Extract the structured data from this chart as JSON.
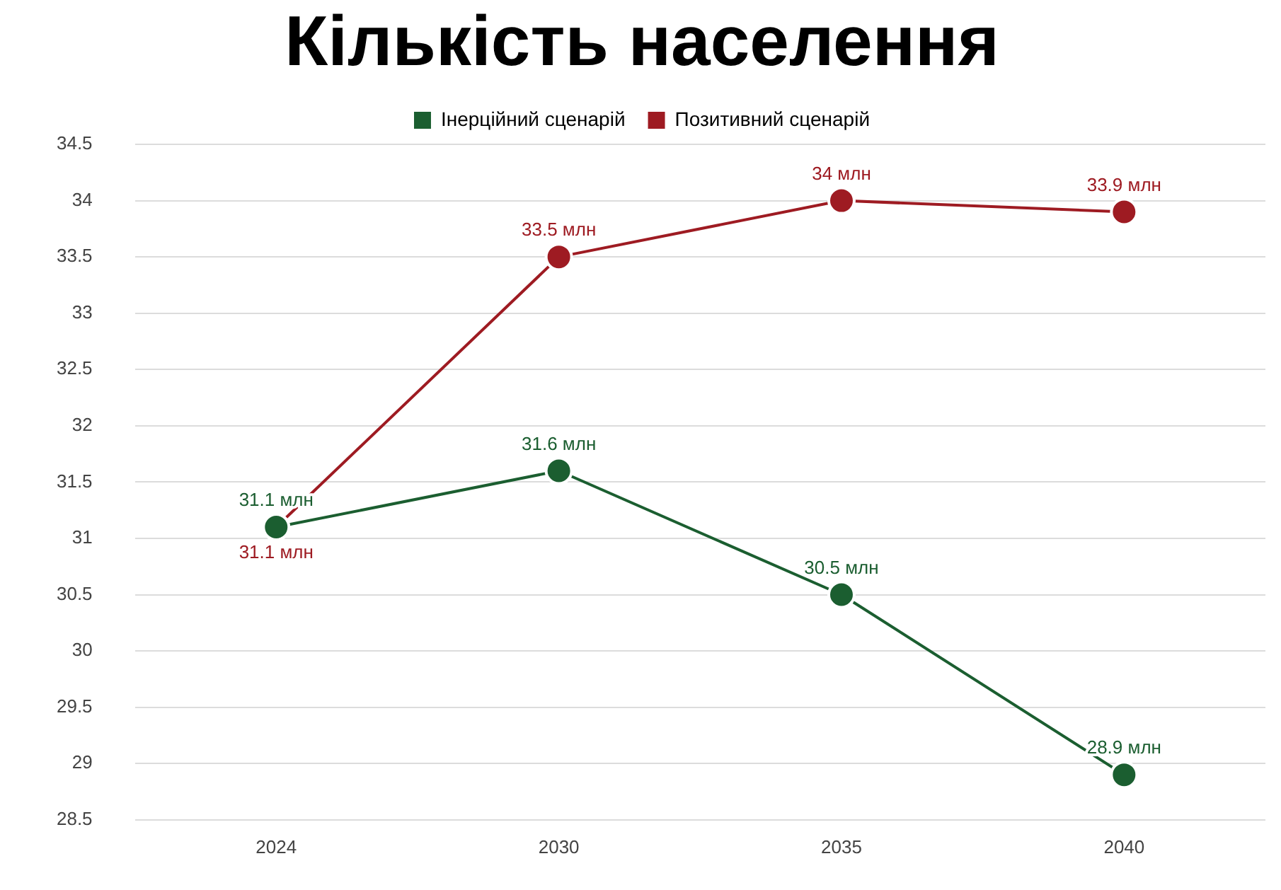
{
  "chart_data": {
    "type": "line",
    "title": "Кількість населення",
    "categories": [
      "2024",
      "2030",
      "2035",
      "2040"
    ],
    "series": [
      {
        "name": "Інерційний сценарій",
        "color": "#1b5e30",
        "values": [
          31.1,
          31.6,
          30.5,
          28.9
        ],
        "value_labels": [
          "31.1 млн",
          "31.6 млн",
          "30.5 млн",
          "28.9 млн"
        ]
      },
      {
        "name": "Позитивний сценарій",
        "color": "#9e1b22",
        "values": [
          31.1,
          33.5,
          34,
          33.9
        ],
        "value_labels": [
          "31.1 млн",
          "33.5 млн",
          "34 млн",
          "33.9 млн"
        ]
      }
    ],
    "ylim": [
      28.5,
      34.5
    ],
    "yticks": [
      28.5,
      29,
      29.5,
      30,
      30.5,
      31,
      31.5,
      32,
      32.5,
      33,
      33.5,
      34,
      34.5
    ],
    "grid": "y",
    "legend": "top",
    "marker": "circle",
    "line_style": "solid"
  }
}
